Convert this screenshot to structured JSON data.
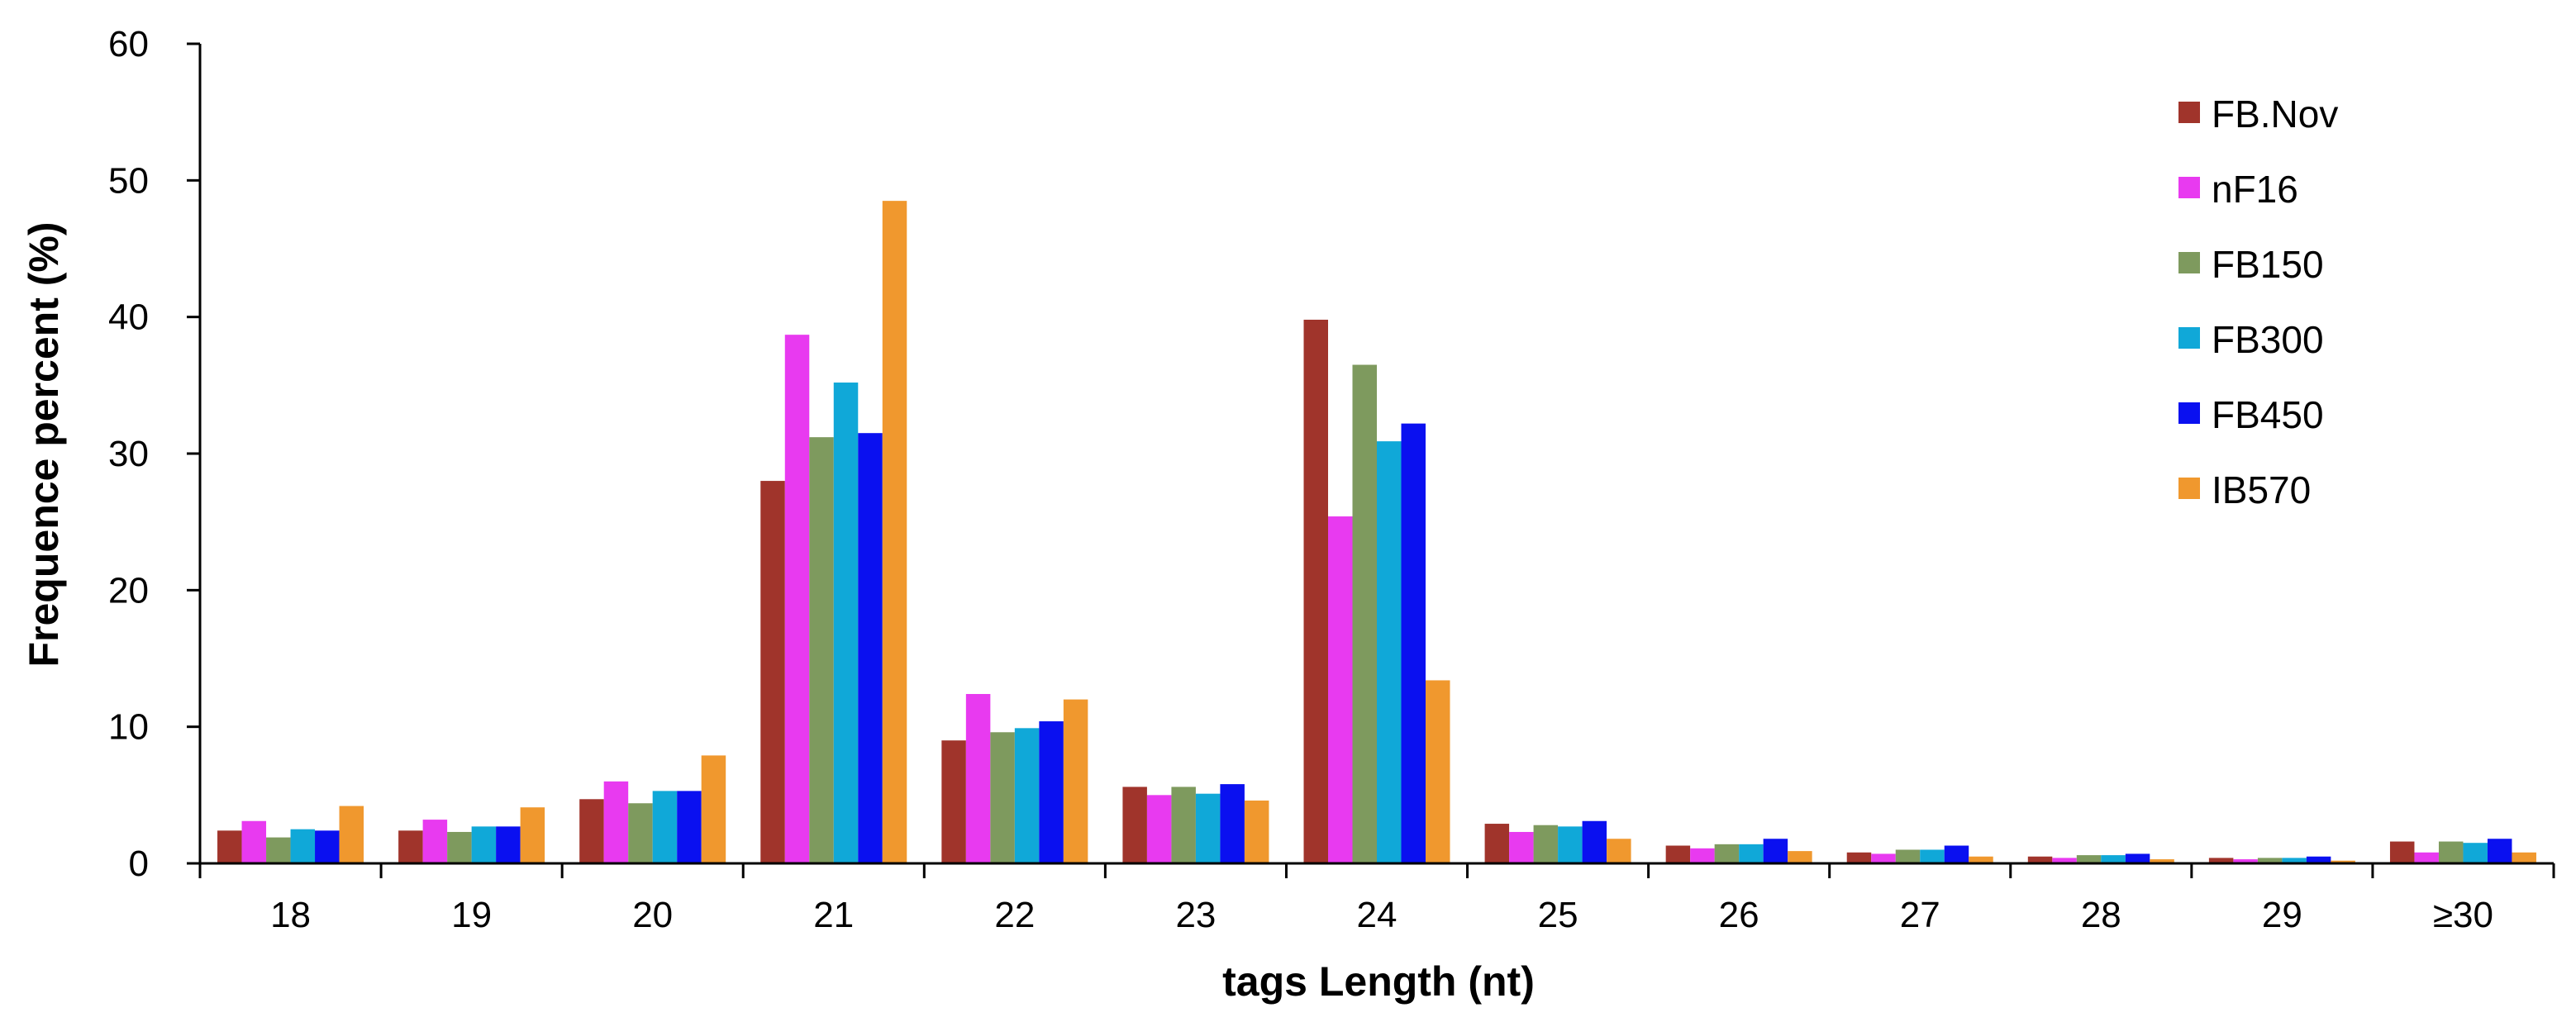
{
  "chart_data": {
    "type": "bar",
    "title": "",
    "xlabel": "tags Length (nt)",
    "ylabel": "Frequence percent (%)",
    "ylim": [
      0,
      60
    ],
    "yticks": [
      "0",
      "10",
      "20",
      "30",
      "40",
      "50",
      "60"
    ],
    "grid": false,
    "legend_position": "top-right",
    "categories": [
      "18",
      "19",
      "20",
      "21",
      "22",
      "23",
      "24",
      "25",
      "26",
      "27",
      "28",
      "29",
      "≥30"
    ],
    "series": [
      {
        "name": "FB.Nov",
        "color": "#A0342B",
        "values": [
          2.4,
          2.4,
          4.7,
          28.0,
          9.0,
          5.6,
          39.8,
          2.9,
          1.3,
          0.8,
          0.5,
          0.4,
          1.6
        ]
      },
      {
        "name": "nF16",
        "color": "#E83AF0",
        "values": [
          3.1,
          3.2,
          6.0,
          38.7,
          12.4,
          5.0,
          25.4,
          2.3,
          1.1,
          0.7,
          0.4,
          0.3,
          0.8
        ]
      },
      {
        "name": "FB150",
        "color": "#7E9A5E",
        "values": [
          1.9,
          2.3,
          4.4,
          31.2,
          9.6,
          5.6,
          36.5,
          2.8,
          1.4,
          1.0,
          0.6,
          0.4,
          1.6
        ]
      },
      {
        "name": "FB300",
        "color": "#10A8D8",
        "values": [
          2.5,
          2.7,
          5.3,
          35.2,
          9.9,
          5.1,
          30.9,
          2.7,
          1.4,
          1.0,
          0.6,
          0.4,
          1.5
        ]
      },
      {
        "name": "FB450",
        "color": "#0A10F0",
        "values": [
          2.4,
          2.7,
          5.3,
          31.5,
          10.4,
          5.8,
          32.2,
          3.1,
          1.8,
          1.3,
          0.7,
          0.5,
          1.8
        ]
      },
      {
        "name": "IB570",
        "color": "#F0982E",
        "values": [
          4.2,
          4.1,
          7.9,
          48.5,
          12.0,
          4.6,
          13.4,
          1.8,
          0.9,
          0.5,
          0.3,
          0.2,
          0.8
        ]
      }
    ]
  }
}
